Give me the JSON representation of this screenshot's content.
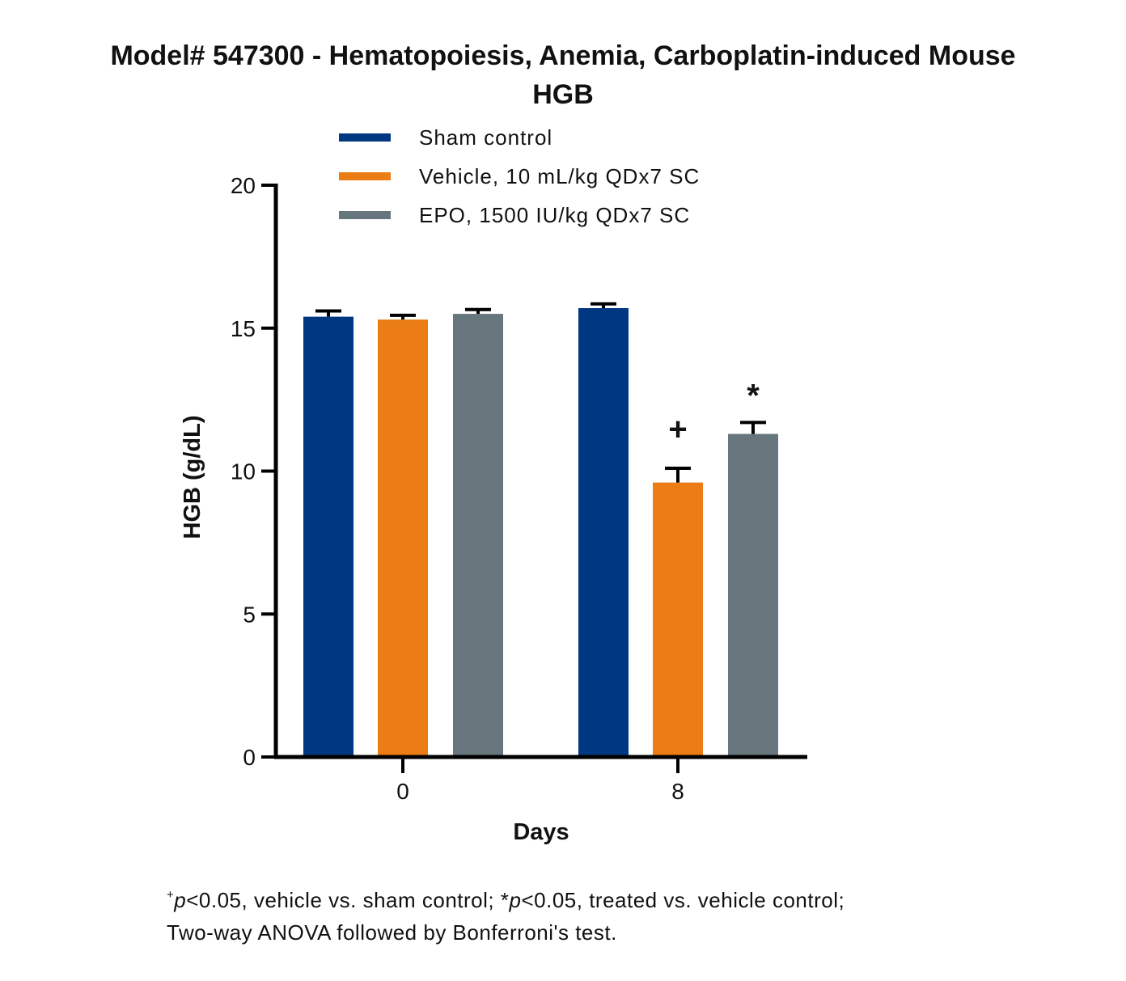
{
  "chart_data": {
    "type": "bar",
    "title_line1": "Model# 547300 - Hematopoiesis, Anemia, Carboplatin-induced Mouse",
    "title_line2": "HGB",
    "xlabel": "Days",
    "ylabel": "HGB (g/dL)",
    "ylim": [
      0,
      20
    ],
    "yticks": [
      "0",
      "5",
      "10",
      "15",
      "20"
    ],
    "categories": [
      "0",
      "8"
    ],
    "legend_position": "top",
    "series": [
      {
        "name": "Sham control",
        "color": "#003781",
        "values": [
          15.4,
          15.7
        ],
        "errors": [
          0.2,
          0.15
        ],
        "annotations": [
          "",
          ""
        ]
      },
      {
        "name": "Vehicle, 10 mL/kg QDx7 SC",
        "color": "#EC7D14",
        "values": [
          15.3,
          9.6
        ],
        "errors": [
          0.15,
          0.5
        ],
        "annotations": [
          "",
          "+"
        ]
      },
      {
        "name": "EPO, 1500 IU/kg QDx7 SC",
        "color": "#67767C",
        "values": [
          15.5,
          11.3
        ],
        "errors": [
          0.15,
          0.4
        ],
        "annotations": [
          "",
          "*"
        ]
      }
    ]
  },
  "footnote": {
    "line1_sup": "+",
    "line1_p1": "p",
    "line1_text1": "<0.05, vehicle vs. sham control; *",
    "line1_p2": "p",
    "line1_text2": "<0.05, treated vs. vehicle control;",
    "line2": "Two-way ANOVA followed by Bonferroni's test."
  }
}
